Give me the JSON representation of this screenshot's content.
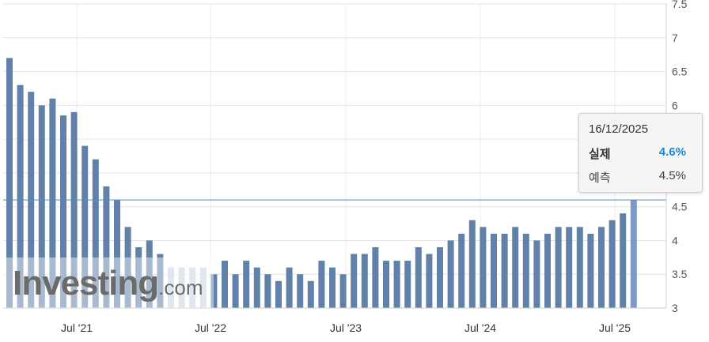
{
  "chart_data": {
    "type": "bar",
    "ylim": [
      3,
      7.5
    ],
    "y_ticks": [
      "3",
      "3.5",
      "4",
      "4.5",
      "5",
      "5.5",
      "6",
      "6.5",
      "7",
      "7.5"
    ],
    "x_tick_labels": [
      "Jul '21",
      "Jul '22",
      "Jul '23",
      "Jul '24",
      "Jul '25"
    ],
    "grid": true,
    "bar_color": "#6181a8",
    "highlight_bar_color": "#7a9bc6",
    "reference_line_color": "#4e8ec8",
    "reference_value": 4.6,
    "values": [
      6.7,
      6.3,
      6.2,
      6.0,
      6.1,
      5.85,
      5.9,
      5.4,
      5.2,
      4.8,
      4.6,
      4.2,
      3.9,
      4.0,
      3.8,
      3.6,
      3.6,
      3.6,
      3.6,
      3.5,
      3.7,
      3.5,
      3.7,
      3.6,
      3.5,
      3.4,
      3.6,
      3.5,
      3.4,
      3.7,
      3.6,
      3.5,
      3.8,
      3.8,
      3.9,
      3.7,
      3.7,
      3.7,
      3.9,
      3.8,
      3.9,
      4.0,
      4.1,
      4.3,
      4.2,
      4.1,
      4.1,
      4.2,
      4.1,
      4.0,
      4.1,
      4.2,
      4.2,
      4.2,
      4.1,
      4.2,
      4.3,
      4.4,
      4.6
    ],
    "watermark_fade_indices": [
      15,
      16,
      17,
      18
    ]
  },
  "tooltip": {
    "date": "16/12/2025",
    "actual_label": "실제",
    "actual_value": "4.6%",
    "forecast_label": "예측",
    "forecast_value": "4.5%"
  },
  "watermark": {
    "brand": "Investing",
    "suffix": ".com"
  }
}
